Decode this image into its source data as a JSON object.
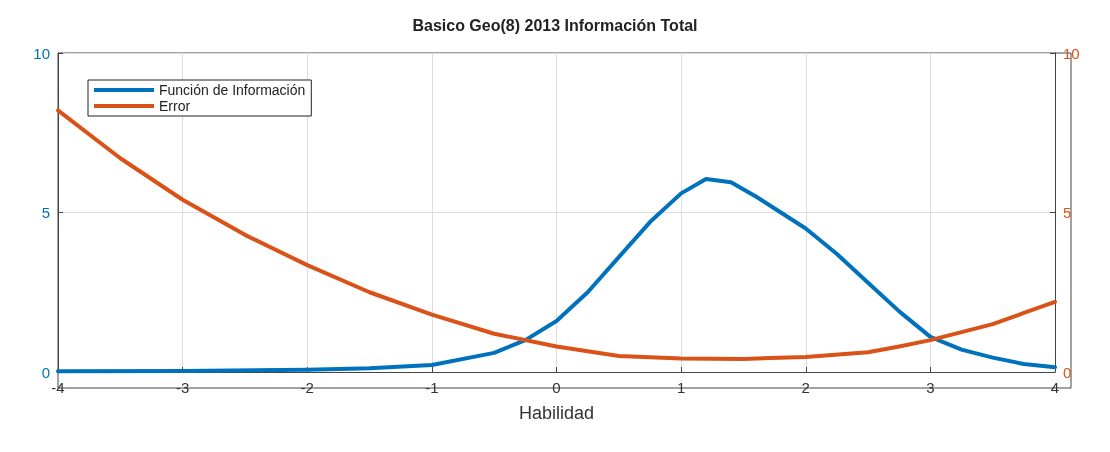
{
  "chart_data": {
    "type": "line",
    "title": "Basico Geo(8) 2013 Información Total",
    "xlabel": "Habilidad",
    "xlim": [
      -4,
      4
    ],
    "xticks": [
      -4,
      -3,
      -2,
      -1,
      0,
      1,
      2,
      3,
      4
    ],
    "ylim": [
      0,
      10
    ],
    "yticks": [
      0,
      5,
      10
    ],
    "y2lim": [
      0,
      10
    ],
    "y2ticks": [
      0,
      5,
      10
    ],
    "grid": true,
    "legend": "top left",
    "line_style": "solid",
    "series": [
      {
        "name": "Función de Información",
        "color": "#0072bd",
        "x": [
          -4,
          -3,
          -2,
          -1.5,
          -1,
          -0.5,
          -0.25,
          0,
          0.25,
          0.5,
          0.75,
          1,
          1.2,
          1.4,
          1.6,
          1.8,
          2,
          2.25,
          2.5,
          2.75,
          3,
          3.25,
          3.5,
          3.75,
          4
        ],
        "values": [
          0.02,
          0.03,
          0.07,
          0.12,
          0.22,
          0.6,
          1.0,
          1.6,
          2.5,
          3.6,
          4.7,
          5.6,
          6.05,
          5.95,
          5.5,
          5.0,
          4.5,
          3.7,
          2.8,
          1.9,
          1.1,
          0.7,
          0.45,
          0.25,
          0.15
        ]
      },
      {
        "name": "Error",
        "color": "#d95319",
        "axis": "y2",
        "x": [
          -4,
          -3.5,
          -3,
          -2.5,
          -2,
          -1.5,
          -1,
          -0.5,
          0,
          0.5,
          1,
          1.5,
          2,
          2.5,
          2.75,
          3,
          3.25,
          3.5,
          3.75,
          4
        ],
        "values": [
          8.2,
          6.7,
          5.4,
          4.3,
          3.35,
          2.5,
          1.8,
          1.2,
          0.8,
          0.5,
          0.42,
          0.41,
          0.47,
          0.62,
          0.8,
          1.0,
          1.25,
          1.5,
          1.85,
          2.2
        ]
      }
    ]
  }
}
